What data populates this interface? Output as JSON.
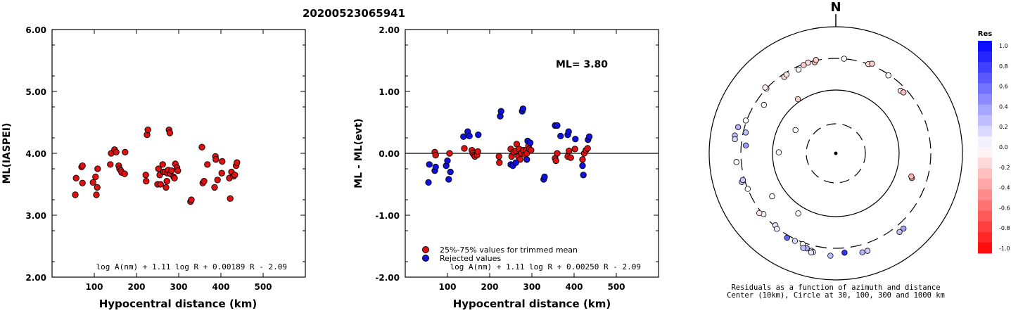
{
  "page_title": "20200523065941",
  "chart_data": [
    {
      "type": "scatter",
      "xlabel": "Hypocentral distance (km)",
      "ylabel": "ML(IASPEI)",
      "xlim": [
        0,
        600
      ],
      "ylim": [
        2.0,
        6.0
      ],
      "xticks": [
        "100",
        "200",
        "300",
        "400",
        "500"
      ],
      "yticks": [
        "2.00",
        "3.00",
        "4.00",
        "5.00",
        "6.00"
      ],
      "formula": "log A(nm) + 1.11 log R + 0.00189 R - 2.09",
      "series": [
        {
          "color": "#dd1111",
          "points": [
            [
              55,
              3.33
            ],
            [
              57,
              3.6
            ],
            [
              70,
              3.78
            ],
            [
              72,
              3.52
            ],
            [
              72,
              3.8
            ],
            [
              97,
              3.53
            ],
            [
              103,
              3.62
            ],
            [
              105,
              3.33
            ],
            [
              107,
              3.45
            ],
            [
              108,
              3.75
            ],
            [
              138,
              3.82
            ],
            [
              140,
              4.0
            ],
            [
              148,
              4.06
            ],
            [
              152,
              4.02
            ],
            [
              158,
              3.8
            ],
            [
              160,
              3.75
            ],
            [
              163,
              3.72
            ],
            [
              165,
              3.69
            ],
            [
              172,
              3.67
            ],
            [
              173,
              4.02
            ],
            [
              222,
              3.65
            ],
            [
              223,
              3.55
            ],
            [
              225,
              4.3
            ],
            [
              227,
              4.38
            ],
            [
              250,
              3.5
            ],
            [
              252,
              3.75
            ],
            [
              255,
              3.65
            ],
            [
              257,
              3.5
            ],
            [
              262,
              3.82
            ],
            [
              264,
              3.7
            ],
            [
              268,
              3.7
            ],
            [
              270,
              3.45
            ],
            [
              272,
              3.55
            ],
            [
              273,
              3.68
            ],
            [
              275,
              3.73
            ],
            [
              277,
              4.38
            ],
            [
              279,
              4.33
            ],
            [
              280,
              3.67
            ],
            [
              283,
              3.72
            ],
            [
              288,
              3.62
            ],
            [
              290,
              3.6
            ],
            [
              292,
              3.83
            ],
            [
              296,
              3.77
            ],
            [
              298,
              3.72
            ],
            [
              328,
              3.22
            ],
            [
              330,
              3.25
            ],
            [
              355,
              4.1
            ],
            [
              357,
              3.52
            ],
            [
              360,
              3.55
            ],
            [
              368,
              3.82
            ],
            [
              385,
              3.45
            ],
            [
              387,
              3.95
            ],
            [
              388,
              3.9
            ],
            [
              392,
              3.57
            ],
            [
              402,
              3.68
            ],
            [
              403,
              3.87
            ],
            [
              420,
              3.6
            ],
            [
              422,
              3.27
            ],
            [
              425,
              3.7
            ],
            [
              430,
              3.63
            ],
            [
              433,
              3.65
            ],
            [
              436,
              3.8
            ],
            [
              438,
              3.85
            ]
          ]
        }
      ]
    },
    {
      "type": "scatter",
      "xlabel": "Hypocentral distance (km)",
      "ylabel": "ML - ML(evt)",
      "xlim": [
        0,
        600
      ],
      "ylim": [
        -2.0,
        2.0
      ],
      "xticks": [
        "100",
        "200",
        "300",
        "400",
        "500"
      ],
      "yticks": [
        "-2.00",
        "-1.00",
        "0.00",
        "1.00",
        "2.00"
      ],
      "annotation": "ML= 3.80",
      "zero_line": true,
      "formula": "log A(nm) + 1.11 log R + 0.00250 R - 2.09",
      "legend": [
        {
          "label": "25%-75% values for trimmed mean",
          "color": "#dd1111"
        },
        {
          "label": "Rejected values",
          "color": "#1111dd"
        }
      ],
      "series": [
        {
          "color": "#dd1111",
          "points": [
            [
              70,
              0.02
            ],
            [
              72,
              -0.03
            ],
            [
              105,
              0.0
            ],
            [
              140,
              0.08
            ],
            [
              158,
              0.05
            ],
            [
              160,
              0.0
            ],
            [
              163,
              -0.03
            ],
            [
              165,
              -0.05
            ],
            [
              170,
              -0.03
            ],
            [
              172,
              0.03
            ],
            [
              222,
              -0.05
            ],
            [
              223,
              -0.15
            ],
            [
              250,
              0.07
            ],
            [
              252,
              -0.05
            ],
            [
              257,
              0.02
            ],
            [
              262,
              0.04
            ],
            [
              264,
              0.15
            ],
            [
              268,
              -0.05
            ],
            [
              270,
              0.07
            ],
            [
              272,
              -0.1
            ],
            [
              275,
              0.0
            ],
            [
              280,
              0.05
            ],
            [
              283,
              -0.02
            ],
            [
              286,
              0.05
            ],
            [
              288,
              0.0
            ],
            [
              292,
              0.12
            ],
            [
              294,
              0.07
            ],
            [
              298,
              0.05
            ],
            [
              355,
              -0.08
            ],
            [
              357,
              -0.12
            ],
            [
              360,
              0.0
            ],
            [
              385,
              -0.05
            ],
            [
              388,
              0.04
            ],
            [
              392,
              -0.07
            ],
            [
              402,
              0.07
            ],
            [
              420,
              -0.1
            ],
            [
              424,
              0.0
            ],
            [
              428,
              0.05
            ],
            [
              432,
              0.08
            ]
          ]
        },
        {
          "color": "#1111dd",
          "points": [
            [
              55,
              -0.47
            ],
            [
              57,
              -0.18
            ],
            [
              70,
              -0.28
            ],
            [
              72,
              -0.22
            ],
            [
              97,
              -0.2
            ],
            [
              100,
              -0.12
            ],
            [
              103,
              -0.42
            ],
            [
              107,
              -0.3
            ],
            [
              138,
              0.27
            ],
            [
              148,
              0.35
            ],
            [
              152,
              0.28
            ],
            [
              173,
              0.3
            ],
            [
              225,
              0.6
            ],
            [
              227,
              0.68
            ],
            [
              250,
              -0.18
            ],
            [
              255,
              -0.2
            ],
            [
              262,
              -0.15
            ],
            [
              277,
              0.68
            ],
            [
              279,
              0.72
            ],
            [
              288,
              -0.1
            ],
            [
              290,
              0.2
            ],
            [
              296,
              0.17
            ],
            [
              328,
              -0.42
            ],
            [
              330,
              -0.38
            ],
            [
              355,
              0.45
            ],
            [
              360,
              0.45
            ],
            [
              368,
              0.28
            ],
            [
              385,
              0.3
            ],
            [
              387,
              0.35
            ],
            [
              403,
              0.23
            ],
            [
              420,
              -0.2
            ],
            [
              422,
              -0.35
            ],
            [
              433,
              0.22
            ],
            [
              436,
              0.27
            ]
          ]
        }
      ]
    },
    {
      "type": "polar",
      "north_label": "N",
      "caption_line1": "Residuals as a function of azimuth and distance",
      "caption_line2": "Center (10km), Circle at 30, 100, 300 and 1000 km",
      "colorbar_title": "Res",
      "colorbar_ticks": [
        "1.0",
        "0.8",
        "0.6",
        "0.4",
        "0.2",
        "0.0",
        "-0.2",
        "-0.4",
        "-0.6",
        "-0.8",
        "-1.0"
      ],
      "colorbar_range": [
        -1.0,
        1.0
      ],
      "stations": [
        {
          "az": 340,
          "dist_km": 290,
          "res": -0.2
        },
        {
          "az": 343,
          "dist_km": 300,
          "res": -0.15
        },
        {
          "az": 336,
          "dist_km": 268,
          "res": -0.05
        },
        {
          "az": 347,
          "dist_km": 285,
          "res": -0.25
        },
        {
          "az": 348,
          "dist_km": 305,
          "res": -0.2
        },
        {
          "az": 326,
          "dist_km": 272,
          "res": -0.15
        },
        {
          "az": 328,
          "dist_km": 280,
          "res": -0.1
        },
        {
          "az": 313,
          "dist_km": 300,
          "res": -0.05
        },
        {
          "az": 313,
          "dist_km": 318,
          "res": -0.05
        },
        {
          "az": 304,
          "dist_km": 225,
          "res": 0.0
        },
        {
          "az": 290,
          "dist_km": 310,
          "res": 0.0
        },
        {
          "az": 283,
          "dist_km": 275,
          "res": 0.25
        },
        {
          "az": 285,
          "dist_km": 380,
          "res": 0.3
        },
        {
          "az": 280,
          "dist_km": 400,
          "res": 0.25
        },
        {
          "az": 278,
          "dist_km": 390,
          "res": 0.15
        },
        {
          "az": 271,
          "dist_km": 80,
          "res": 0.0
        },
        {
          "az": 275,
          "dist_km": 255,
          "res": 0.4
        },
        {
          "az": 265,
          "dist_km": 360,
          "res": 0.0
        },
        {
          "az": 253,
          "dist_km": 340,
          "res": 0.25
        },
        {
          "az": 254,
          "dist_km": 320,
          "res": 0.2
        },
        {
          "az": 248,
          "dist_km": 300,
          "res": 0.0
        },
        {
          "az": 236,
          "dist_km": 160,
          "res": 0.0
        },
        {
          "az": 230,
          "dist_km": 295,
          "res": 0.0
        },
        {
          "az": 232,
          "dist_km": 325,
          "res": -0.1
        },
        {
          "az": 212,
          "dist_km": 130,
          "res": 0.0
        },
        {
          "az": 220,
          "dist_km": 290,
          "res": 0.1
        },
        {
          "az": 218,
          "dist_km": 310,
          "res": 0.05
        },
        {
          "az": 210,
          "dist_km": 330,
          "res": 0.6
        },
        {
          "az": 200,
          "dist_km": 320,
          "res": 0.0
        },
        {
          "az": 205,
          "dist_km": 320,
          "res": 0.15
        },
        {
          "az": 197,
          "dist_km": 355,
          "res": 0.3
        },
        {
          "az": 199,
          "dist_km": 365,
          "res": 0.25
        },
        {
          "az": 194,
          "dist_km": 370,
          "res": 0.05
        },
        {
          "az": 193,
          "dist_km": 382,
          "res": 0.15
        },
        {
          "az": 194,
          "dist_km": 395,
          "res": 0.1
        },
        {
          "az": 183,
          "dist_km": 400,
          "res": 0.25
        },
        {
          "az": 175,
          "dist_km": 360,
          "res": 0.8
        },
        {
          "az": 165,
          "dist_km": 400,
          "res": 0.3
        },
        {
          "az": 162,
          "dist_km": 400,
          "res": 0.2
        },
        {
          "az": 141,
          "dist_km": 380,
          "res": 0.25
        },
        {
          "az": 138,
          "dist_km": 380,
          "res": 0.35
        },
        {
          "az": 108,
          "dist_km": 178,
          "res": -0.4
        },
        {
          "az": 107,
          "dist_km": 172,
          "res": -0.3
        },
        {
          "az": 5,
          "dist_km": 300,
          "res": 0.0
        },
        {
          "az": 20,
          "dist_km": 300,
          "res": -0.15
        },
        {
          "az": 22,
          "dist_km": 320,
          "res": -0.2
        },
        {
          "az": 34,
          "dist_km": 290,
          "res": 0.0
        },
        {
          "az": 46,
          "dist_km": 253,
          "res": -0.15
        },
        {
          "az": 48,
          "dist_km": 262,
          "res": -0.25
        },
        {
          "az": 325,
          "dist_km": 110,
          "res": -0.2
        },
        {
          "az": 300,
          "dist_km": 55,
          "res": 0.0
        }
      ]
    }
  ]
}
